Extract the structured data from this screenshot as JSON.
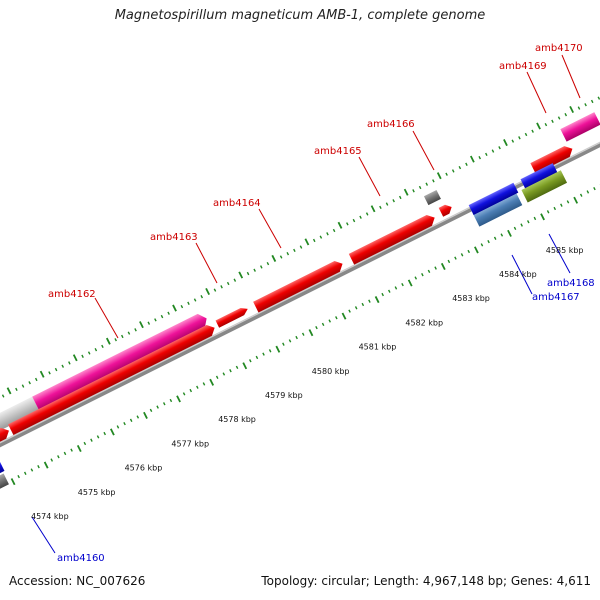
{
  "title": "Magnetospirillum magneticum AMB-1, complete genome",
  "footer": {
    "accession": "Accession: NC_007626",
    "summary": "Topology: circular; Length: 4,967,148 bp; Genes: 4,611"
  },
  "colors": {
    "red": "#ee0000",
    "magenta": "#ee1199",
    "grey": "#888888",
    "blue": "#1111dd",
    "steelblue": "#4d7fb5",
    "olive": "#7a9a22",
    "lightgrey": "#c8c8c8",
    "tick": "#228822",
    "label_top": "#cc0000",
    "label_bottom": "#0000cc"
  },
  "kbp_ticks": [
    "4574 kbp",
    "4575 kbp",
    "4576 kbp",
    "4577 kbp",
    "4578 kbp",
    "4579 kbp",
    "4580 kbp",
    "4581 kbp",
    "4582 kbp",
    "4583 kbp",
    "4584 kbp",
    "4585 kbp"
  ],
  "genes_top": [
    "amb4162",
    "amb4163",
    "amb4164",
    "amb4165",
    "amb4166",
    "amb4169",
    "amb4170"
  ],
  "genes_bottom": [
    "amb4160",
    "amb4167",
    "amb4168"
  ]
}
